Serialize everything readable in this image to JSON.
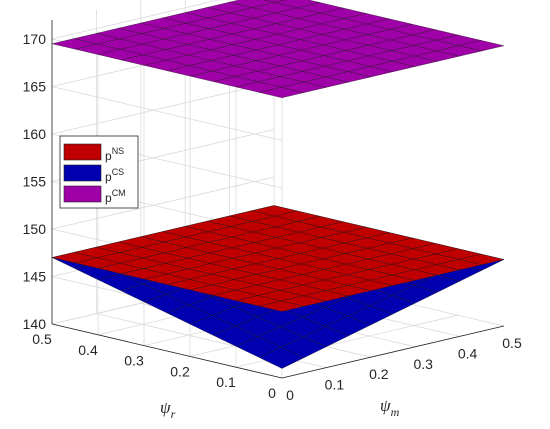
{
  "chart_data": {
    "type": "surface3d",
    "xlabel": "ψ",
    "xlabel_sub": "m",
    "ylabel": "ψ",
    "ylabel_sub": "r",
    "zlabel": "",
    "title": "",
    "x_range": [
      0,
      0.5
    ],
    "y_range": [
      0,
      0.5
    ],
    "zlim": [
      140,
      172
    ],
    "x_ticks": [
      "0",
      "0.1",
      "0.2",
      "0.3",
      "0.4",
      "0.5"
    ],
    "y_ticks": [
      "0",
      "0.1",
      "0.2",
      "0.3",
      "0.4",
      "0.5"
    ],
    "z_ticks": [
      "140",
      "145",
      "150",
      "155",
      "160",
      "165",
      "170"
    ],
    "grid": true,
    "legend_position": "left",
    "series": [
      {
        "name": "p",
        "sup": "NS",
        "color": "#c00000",
        "z": [
          [
            147.0,
            147.0
          ],
          [
            147.0,
            147.0
          ]
        ]
      },
      {
        "name": "p",
        "sup": "CS",
        "color": "#0000b0",
        "z": [
          [
            141.0,
            147.0
          ],
          [
            147.0,
            147.0
          ]
        ]
      },
      {
        "name": "p",
        "sup": "CM",
        "color": "#a000a8",
        "z": [
          [
            169.5,
            169.5
          ],
          [
            169.5,
            169.5
          ]
        ]
      }
    ]
  }
}
